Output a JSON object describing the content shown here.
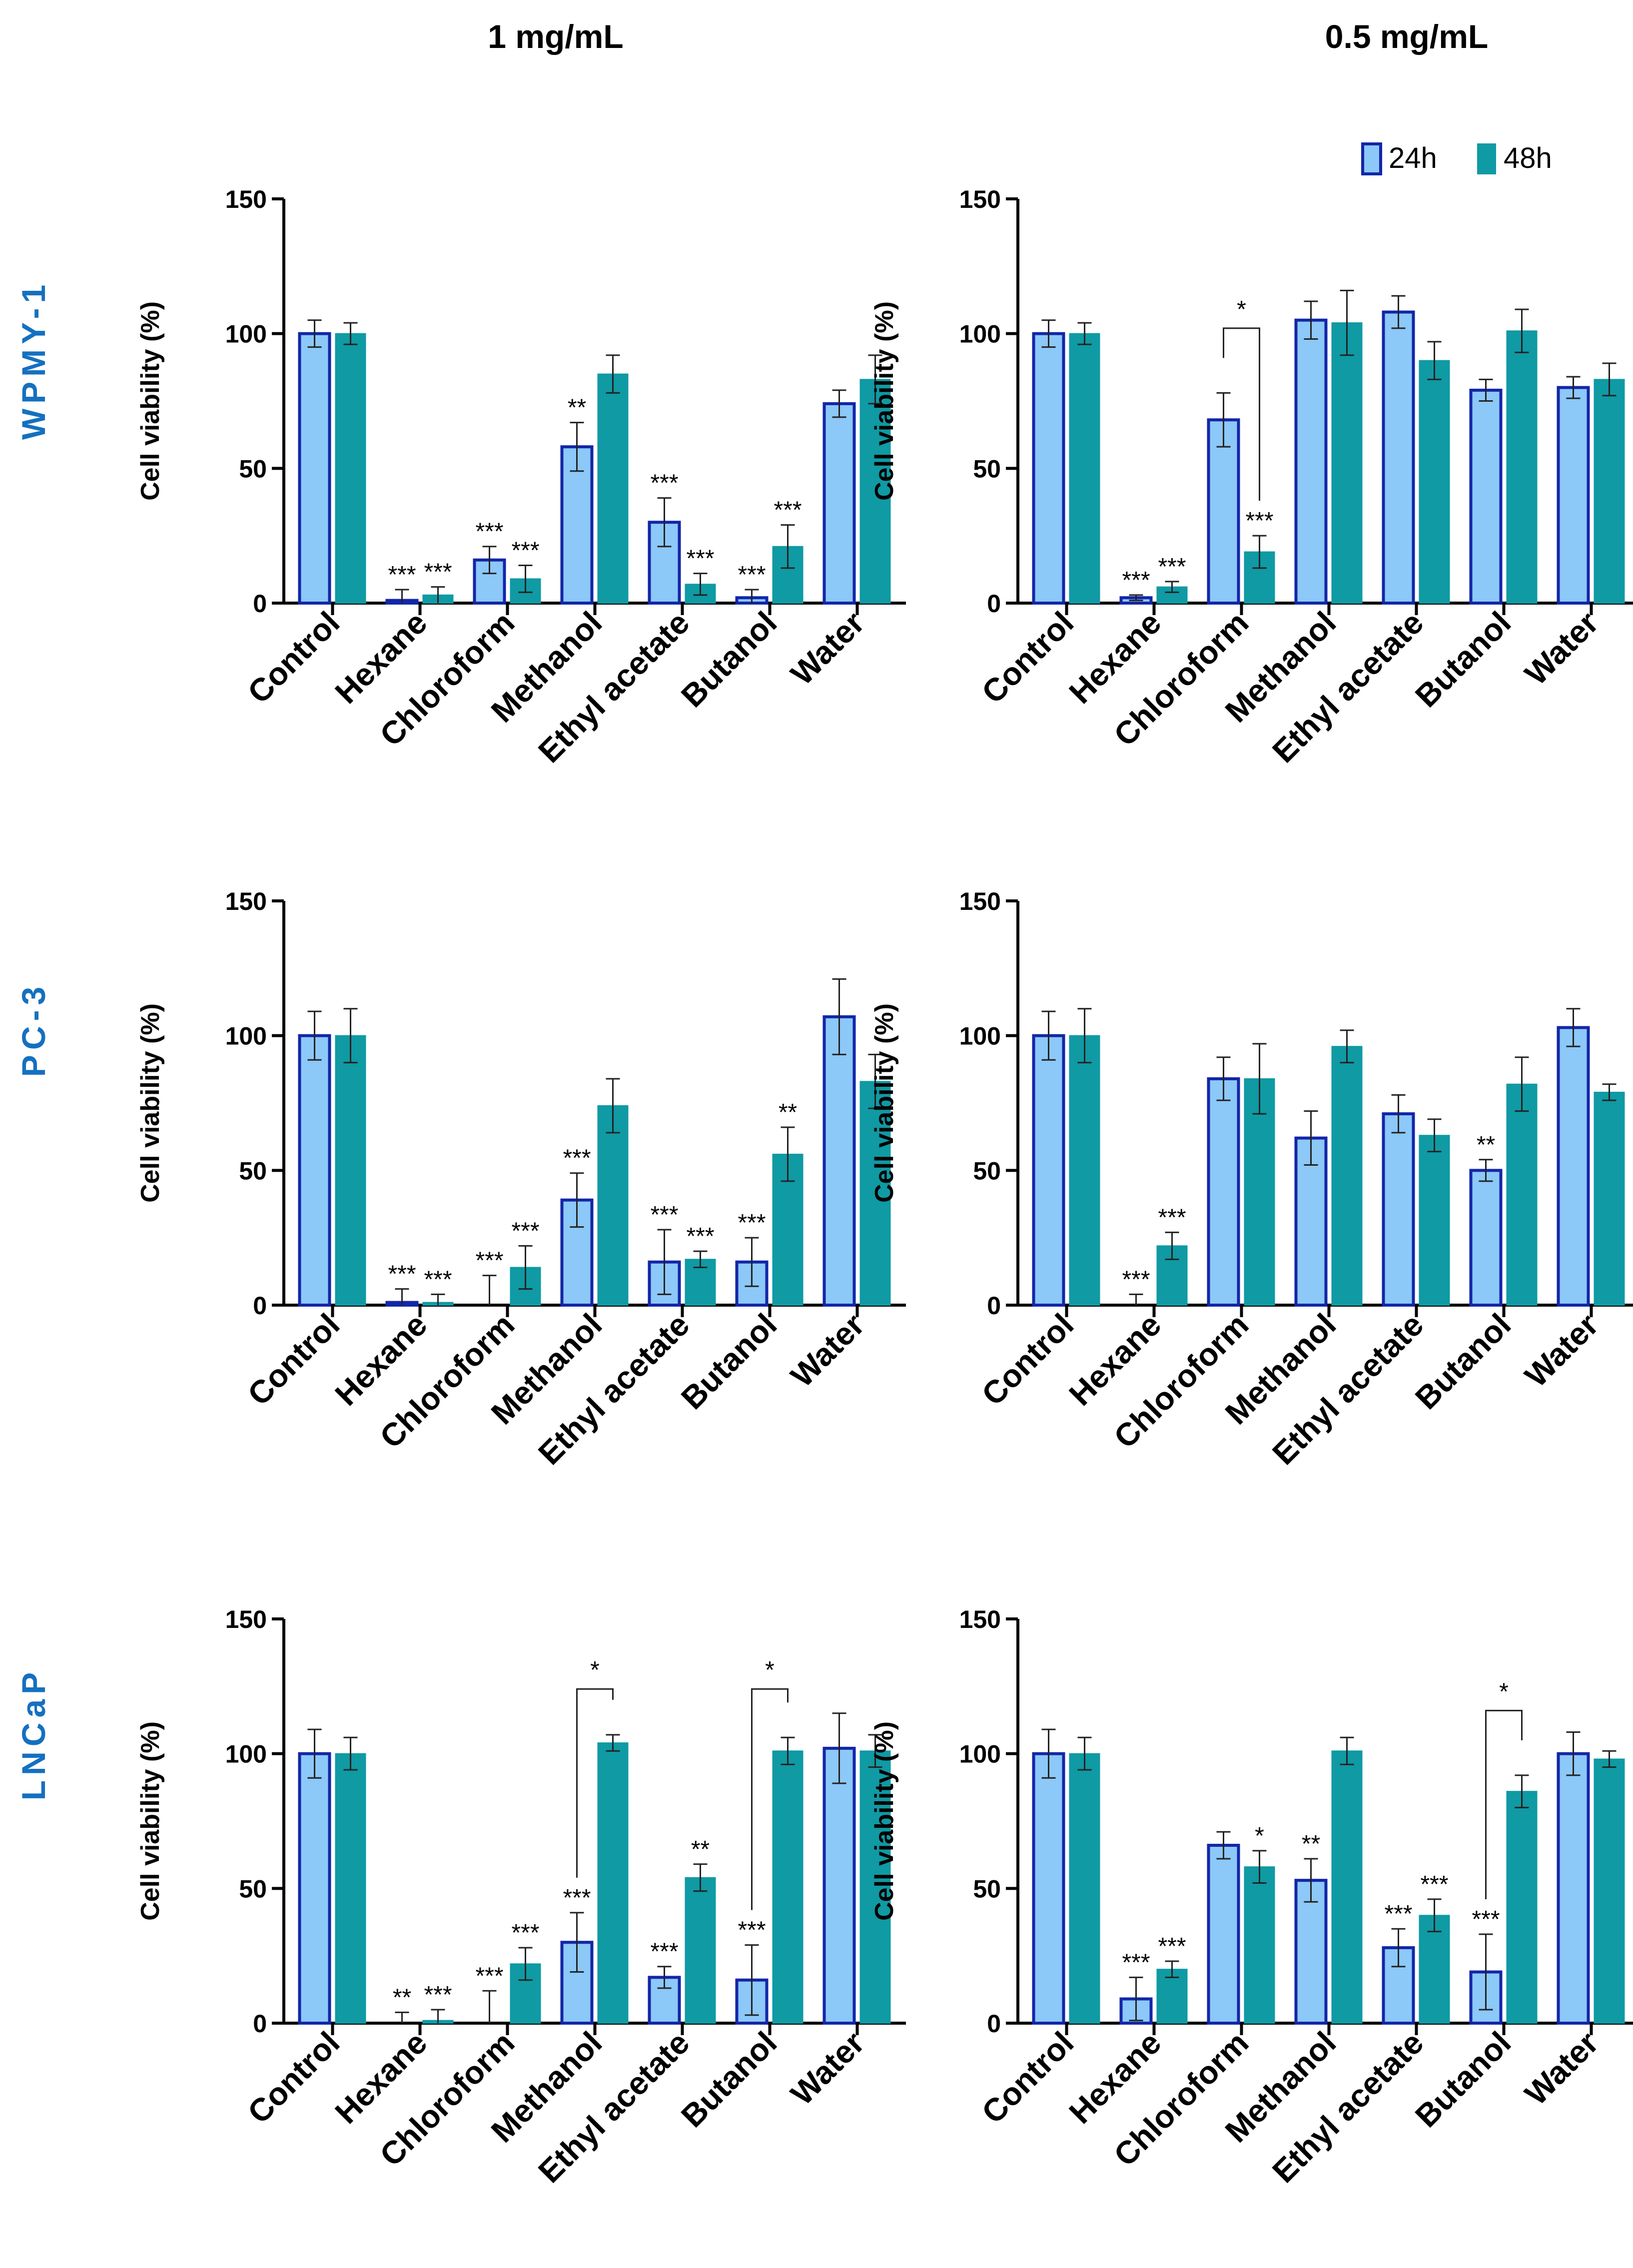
{
  "figure": {
    "column_titles": [
      "1 mg/mL",
      "0.5 mg/mL"
    ],
    "row_titles": [
      "WPMY-1",
      "PC-3",
      "LNCaP"
    ],
    "ylabel": "Cell viability (%)",
    "legend": [
      "24h",
      "48h"
    ]
  },
  "colors": {
    "bar_24h": "#8cc8f8",
    "edge_24h": "#1326a8",
    "bar_48h": "#0f9aa4",
    "row_title": "#1570c0",
    "axis": "#000000"
  },
  "chart_data": [
    {
      "type": "bar",
      "row": "WPMY-1",
      "concentration": "1 mg/mL",
      "categories": [
        "Control",
        "Hexane",
        "Chloroform",
        "Methanol",
        "Ethyl acetate",
        "Butanol",
        "Water"
      ],
      "ylabel": "Cell viability (%)",
      "ylim": [
        0,
        150
      ],
      "yticks": [
        0,
        50,
        100,
        150
      ],
      "series": [
        {
          "name": "24h",
          "values": [
            100,
            1,
            16,
            58,
            30,
            2,
            74
          ],
          "errors": [
            5,
            4,
            5,
            9,
            9,
            3,
            5
          ],
          "annotations": [
            "",
            "***",
            "***",
            "**",
            "***",
            "***",
            ""
          ]
        },
        {
          "name": "48h",
          "values": [
            100,
            3,
            9,
            85,
            7,
            21,
            83
          ],
          "errors": [
            4,
            3,
            5,
            7,
            4,
            8,
            9
          ],
          "annotations": [
            "",
            "***",
            "***",
            "",
            "***",
            "***",
            ""
          ]
        }
      ],
      "brackets": []
    },
    {
      "type": "bar",
      "row": "WPMY-1",
      "concentration": "0.5 mg/mL",
      "categories": [
        "Control",
        "Hexane",
        "Chloroform",
        "Methanol",
        "Ethyl acetate",
        "Butanol",
        "Water"
      ],
      "ylabel": "Cell viability (%)",
      "ylim": [
        0,
        150
      ],
      "yticks": [
        0,
        50,
        100,
        150
      ],
      "legend": [
        "24h",
        "48h"
      ],
      "series": [
        {
          "name": "24h",
          "values": [
            100,
            2,
            68,
            105,
            108,
            79,
            80
          ],
          "errors": [
            5,
            1,
            10,
            7,
            6,
            4,
            4
          ],
          "annotations": [
            "",
            "***",
            "",
            "",
            "",
            "",
            ""
          ]
        },
        {
          "name": "48h",
          "values": [
            100,
            6,
            19,
            104,
            90,
            101,
            83
          ],
          "errors": [
            4,
            2,
            6,
            12,
            7,
            8,
            6
          ],
          "annotations": [
            "",
            "***",
            "***",
            "",
            "",
            "",
            ""
          ]
        }
      ],
      "brackets": [
        {
          "category": 2,
          "label": "*",
          "level": 102
        }
      ]
    },
    {
      "type": "bar",
      "row": "PC-3",
      "concentration": "1 mg/mL",
      "categories": [
        "Control",
        "Hexane",
        "Chloroform",
        "Methanol",
        "Ethyl acetate",
        "Butanol",
        "Water"
      ],
      "ylabel": "Cell viability (%)",
      "ylim": [
        0,
        150
      ],
      "yticks": [
        0,
        50,
        100,
        150
      ],
      "series": [
        {
          "name": "24h",
          "values": [
            100,
            1,
            0,
            39,
            16,
            16,
            107
          ],
          "errors": [
            9,
            5,
            11,
            10,
            12,
            9,
            14
          ],
          "annotations": [
            "",
            "***",
            "***",
            "***",
            "***",
            "***",
            ""
          ]
        },
        {
          "name": "48h",
          "values": [
            100,
            1,
            14,
            74,
            17,
            56,
            83
          ],
          "errors": [
            10,
            3,
            8,
            10,
            3,
            10,
            10
          ],
          "annotations": [
            "",
            "***",
            "***",
            "",
            "***",
            "**",
            ""
          ]
        }
      ],
      "brackets": []
    },
    {
      "type": "bar",
      "row": "PC-3",
      "concentration": "0.5 mg/mL",
      "categories": [
        "Control",
        "Hexane",
        "Chloroform",
        "Methanol",
        "Ethyl acetate",
        "Butanol",
        "Water"
      ],
      "ylabel": "Cell viability (%)",
      "ylim": [
        0,
        150
      ],
      "yticks": [
        0,
        50,
        100,
        150
      ],
      "series": [
        {
          "name": "24h",
          "values": [
            100,
            0,
            84,
            62,
            71,
            50,
            103
          ],
          "errors": [
            9,
            4,
            8,
            10,
            7,
            4,
            7
          ],
          "annotations": [
            "",
            "***",
            "",
            "",
            "",
            "**",
            ""
          ]
        },
        {
          "name": "48h",
          "values": [
            100,
            22,
            84,
            96,
            63,
            82,
            79
          ],
          "errors": [
            10,
            5,
            13,
            6,
            6,
            10,
            3
          ],
          "annotations": [
            "",
            "***",
            "",
            "",
            "",
            "",
            ""
          ]
        }
      ],
      "brackets": []
    },
    {
      "type": "bar",
      "row": "LNCaP",
      "concentration": "1 mg/mL",
      "categories": [
        "Control",
        "Hexane",
        "Chloroform",
        "Methanol",
        "Ethyl acetate",
        "Butanol",
        "Water"
      ],
      "ylabel": "Cell viability (%)",
      "ylim": [
        0,
        150
      ],
      "yticks": [
        0,
        50,
        100,
        150
      ],
      "series": [
        {
          "name": "24h",
          "values": [
            100,
            0,
            0,
            30,
            17,
            16,
            102
          ],
          "errors": [
            9,
            4,
            12,
            11,
            4,
            13,
            13
          ],
          "annotations": [
            "",
            "**",
            "***",
            "***",
            "***",
            "***",
            ""
          ]
        },
        {
          "name": "48h",
          "values": [
            100,
            1,
            22,
            104,
            54,
            101,
            101
          ],
          "errors": [
            6,
            4,
            6,
            3,
            5,
            5,
            6
          ],
          "annotations": [
            "",
            "***",
            "***",
            "",
            "**",
            "",
            ""
          ]
        }
      ],
      "brackets": [
        {
          "category": 3,
          "label": "*",
          "level": 124
        },
        {
          "category": 5,
          "label": "*",
          "level": 124
        }
      ]
    },
    {
      "type": "bar",
      "row": "LNCaP",
      "concentration": "0.5 mg/mL",
      "categories": [
        "Control",
        "Hexane",
        "Chloroform",
        "Methanol",
        "Ethyl acetate",
        "Butanol",
        "Water"
      ],
      "ylabel": "Cell viability (%)",
      "ylim": [
        0,
        150
      ],
      "yticks": [
        0,
        50,
        100,
        150
      ],
      "series": [
        {
          "name": "24h",
          "values": [
            100,
            9,
            66,
            53,
            28,
            19,
            100
          ],
          "errors": [
            9,
            8,
            5,
            8,
            7,
            14,
            8
          ],
          "annotations": [
            "",
            "***",
            "",
            "**",
            "***",
            "***",
            ""
          ]
        },
        {
          "name": "48h",
          "values": [
            100,
            20,
            58,
            101,
            40,
            86,
            98
          ],
          "errors": [
            6,
            3,
            6,
            5,
            6,
            6,
            3
          ],
          "annotations": [
            "",
            "***",
            "*",
            "",
            "***",
            "",
            ""
          ]
        }
      ],
      "brackets": [
        {
          "category": 5,
          "label": "*",
          "level": 116
        }
      ]
    }
  ]
}
